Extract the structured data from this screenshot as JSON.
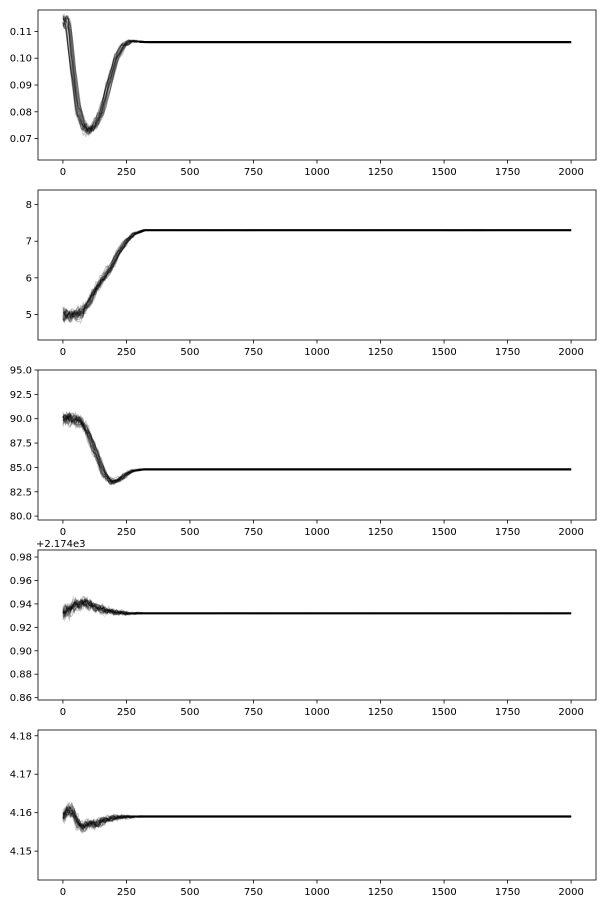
{
  "figure": {
    "description_type": "MCMC trace plots, 5 stacked panels, black semi-transparent walkers"
  },
  "chart_data": [
    {
      "type": "line",
      "title": "",
      "xlabel": "",
      "ylabel": "",
      "xlim": [
        -98,
        2098
      ],
      "ylim": [
        0.062,
        0.118
      ],
      "x_ticks": [
        0,
        250,
        500,
        750,
        1000,
        1250,
        1500,
        1750,
        2000
      ],
      "y_ticks": [
        0.07,
        0.08,
        0.09,
        0.1,
        0.11
      ],
      "y_tick_labels": [
        "0.07",
        "0.08",
        "0.09",
        "0.10",
        "0.11"
      ],
      "offset_text": "",
      "series_color": "#000000",
      "series": [
        {
          "x": [
            0,
            20,
            40,
            60,
            80,
            100,
            120,
            150,
            180,
            210,
            240,
            270,
            300,
            330,
            400,
            600,
            1000,
            1500,
            2000
          ],
          "values": [
            0.1145,
            0.113,
            0.095,
            0.081,
            0.075,
            0.073,
            0.074,
            0.079,
            0.09,
            0.1,
            0.105,
            0.1065,
            0.1062,
            0.106,
            0.106,
            0.106,
            0.106,
            0.106,
            0.106
          ]
        }
      ]
    },
    {
      "type": "line",
      "title": "",
      "xlabel": "",
      "ylabel": "",
      "xlim": [
        -98,
        2098
      ],
      "ylim": [
        4.3,
        8.4
      ],
      "x_ticks": [
        0,
        250,
        500,
        750,
        1000,
        1250,
        1500,
        1750,
        2000
      ],
      "y_ticks": [
        5,
        6,
        7,
        8
      ],
      "y_tick_labels": [
        "5",
        "6",
        "7",
        "8"
      ],
      "offset_text": "",
      "series_color": "#000000",
      "series": [
        {
          "x": [
            0,
            40,
            70,
            100,
            130,
            160,
            190,
            220,
            250,
            280,
            320,
            400,
            600,
            1000,
            1500,
            2000
          ],
          "values": [
            5.0,
            5.0,
            5.05,
            5.3,
            5.7,
            6.0,
            6.3,
            6.7,
            7.0,
            7.2,
            7.3,
            7.3,
            7.3,
            7.3,
            7.3,
            7.3
          ]
        }
      ]
    },
    {
      "type": "line",
      "title": "",
      "xlabel": "",
      "ylabel": "",
      "xlim": [
        -98,
        2098
      ],
      "ylim": [
        79.6,
        95.0
      ],
      "x_ticks": [
        0,
        250,
        500,
        750,
        1000,
        1250,
        1500,
        1750,
        2000
      ],
      "y_ticks": [
        80.0,
        82.5,
        85.0,
        87.5,
        90.0,
        92.5,
        95.0
      ],
      "y_tick_labels": [
        "80.0",
        "82.5",
        "85.0",
        "87.5",
        "90.0",
        "92.5",
        "95.0"
      ],
      "offset_text": "",
      "series_color": "#000000",
      "series": [
        {
          "x": [
            0,
            40,
            70,
            100,
            130,
            160,
            190,
            220,
            250,
            280,
            320,
            400,
            600,
            1000,
            1500,
            2000
          ],
          "values": [
            90.0,
            90.0,
            89.8,
            88.5,
            86.5,
            84.5,
            83.5,
            83.7,
            84.3,
            84.7,
            84.8,
            84.8,
            84.8,
            84.8,
            84.8,
            84.8
          ]
        }
      ]
    },
    {
      "type": "line",
      "title": "",
      "xlabel": "",
      "ylabel": "",
      "xlim": [
        -98,
        2098
      ],
      "ylim": [
        0.858,
        0.986
      ],
      "x_ticks": [
        0,
        250,
        500,
        750,
        1000,
        1250,
        1500,
        1750,
        2000
      ],
      "y_ticks": [
        0.86,
        0.88,
        0.9,
        0.92,
        0.94,
        0.96,
        0.98
      ],
      "y_tick_labels": [
        "0.86",
        "0.88",
        "0.90",
        "0.92",
        "0.94",
        "0.96",
        "0.98"
      ],
      "offset_text": "+2.174e3",
      "series_color": "#000000",
      "series": [
        {
          "x": [
            0,
            20,
            40,
            60,
            80,
            100,
            130,
            160,
            200,
            250,
            300,
            400,
            600,
            1000,
            1500,
            2000
          ],
          "values": [
            0.932,
            0.935,
            0.94,
            0.938,
            0.942,
            0.94,
            0.937,
            0.935,
            0.933,
            0.932,
            0.932,
            0.932,
            0.932,
            0.932,
            0.932,
            0.932
          ]
        }
      ]
    },
    {
      "type": "line",
      "title": "",
      "xlabel": "",
      "ylabel": "",
      "xlim": [
        -98,
        2098
      ],
      "ylim": [
        4.1425,
        4.1815
      ],
      "x_ticks": [
        0,
        250,
        500,
        750,
        1000,
        1250,
        1500,
        1750,
        2000
      ],
      "y_ticks": [
        4.15,
        4.16,
        4.17,
        4.18
      ],
      "y_tick_labels": [
        "4.15",
        "4.16",
        "4.17",
        "4.18"
      ],
      "offset_text": "",
      "series_color": "#000000",
      "series": [
        {
          "x": [
            0,
            20,
            40,
            60,
            80,
            100,
            130,
            160,
            200,
            250,
            300,
            400,
            600,
            1000,
            1500,
            2000
          ],
          "values": [
            4.159,
            4.161,
            4.16,
            4.157,
            4.156,
            4.157,
            4.157,
            4.158,
            4.1588,
            4.159,
            4.159,
            4.159,
            4.159,
            4.159,
            4.159,
            4.159
          ]
        }
      ]
    }
  ]
}
